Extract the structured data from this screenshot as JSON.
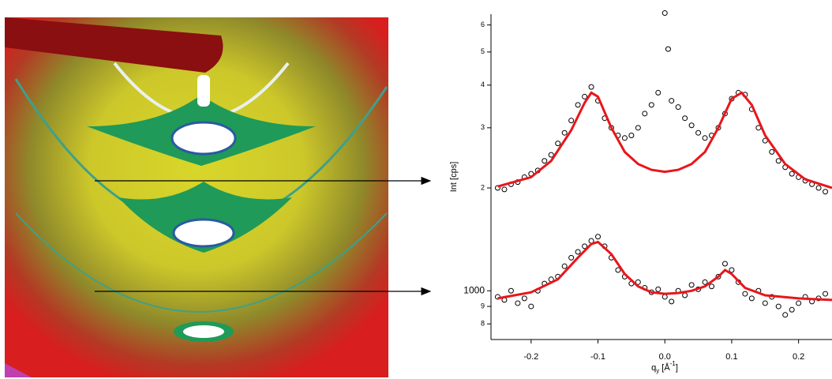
{
  "chart_data": {
    "type": "scatter",
    "log_y": true,
    "ylabel": "Int [cps]",
    "xlabel_parts": [
      "q",
      "y",
      " [Å",
      "-1",
      "]"
    ],
    "xlim": [
      -0.26,
      0.25
    ],
    "xticks": [
      -0.2,
      -0.1,
      {
        "value": 0,
        "label": "0.0"
      },
      0.1,
      0.2
    ],
    "ylim": [
      720,
      6450
    ],
    "yticks": [
      {
        "value": 800,
        "label": "8"
      },
      {
        "value": 900,
        "label": "9"
      },
      1000,
      {
        "value": 2000,
        "label": "2"
      },
      {
        "value": 3000,
        "label": "3"
      },
      {
        "value": 4000,
        "label": "4"
      },
      {
        "value": 5000,
        "label": "5"
      },
      {
        "value": 6000,
        "label": "6"
      }
    ],
    "series": [
      {
        "style": "markers",
        "color": "#000000",
        "x": [
          -0.25,
          -0.24,
          -0.23,
          -0.22,
          -0.21,
          -0.2,
          -0.19,
          -0.18,
          -0.17,
          -0.16,
          -0.15,
          -0.14,
          -0.13,
          -0.12,
          -0.11,
          -0.1,
          -0.09,
          -0.08,
          -0.07,
          -0.06,
          -0.05,
          -0.04,
          -0.03,
          -0.02,
          -0.01,
          0,
          0.005,
          0.01,
          0.02,
          0.03,
          0.04,
          0.05,
          0.06,
          0.07,
          0.08,
          0.09,
          0.1,
          0.11,
          0.12,
          0.13,
          0.14,
          0.15,
          0.16,
          0.17,
          0.18,
          0.19,
          0.2,
          0.21,
          0.22,
          0.23,
          0.24
        ],
        "values": [
          2000,
          1980,
          2050,
          2080,
          2150,
          2200,
          2250,
          2400,
          2500,
          2700,
          2900,
          3150,
          3500,
          3700,
          3950,
          3600,
          3200,
          3000,
          2850,
          2800,
          2850,
          3000,
          3300,
          3500,
          3800,
          6500,
          5100,
          3600,
          3450,
          3200,
          3050,
          2900,
          2800,
          2850,
          3000,
          3300,
          3650,
          3800,
          3750,
          3400,
          3000,
          2750,
          2550,
          2400,
          2300,
          2200,
          2150,
          2100,
          2050,
          2000,
          1950
        ]
      },
      {
        "style": "line",
        "color": "#e8161b",
        "x": [
          -0.25,
          -0.2,
          -0.17,
          -0.14,
          -0.12,
          -0.11,
          -0.1,
          -0.08,
          -0.06,
          -0.04,
          -0.02,
          0,
          0.02,
          0.04,
          0.06,
          0.08,
          0.1,
          0.115,
          0.13,
          0.15,
          0.18,
          0.21,
          0.25
        ],
        "values": [
          2020,
          2150,
          2400,
          2950,
          3550,
          3800,
          3700,
          3000,
          2550,
          2350,
          2260,
          2230,
          2260,
          2350,
          2550,
          3000,
          3650,
          3800,
          3500,
          2850,
          2350,
          2120,
          2000
        ]
      },
      {
        "style": "markers",
        "color": "#000000",
        "x": [
          -0.25,
          -0.24,
          -0.23,
          -0.22,
          -0.21,
          -0.2,
          -0.19,
          -0.18,
          -0.17,
          -0.16,
          -0.15,
          -0.14,
          -0.13,
          -0.12,
          -0.11,
          -0.1,
          -0.09,
          -0.08,
          -0.07,
          -0.06,
          -0.05,
          -0.04,
          -0.03,
          -0.02,
          -0.01,
          0,
          0.01,
          0.02,
          0.03,
          0.04,
          0.05,
          0.06,
          0.07,
          0.08,
          0.09,
          0.1,
          0.11,
          0.12,
          0.13,
          0.14,
          0.15,
          0.16,
          0.17,
          0.18,
          0.19,
          0.2,
          0.21,
          0.22,
          0.23,
          0.24
        ],
        "values": [
          960,
          940,
          1000,
          920,
          950,
          900,
          1000,
          1050,
          1080,
          1100,
          1180,
          1250,
          1300,
          1350,
          1400,
          1440,
          1350,
          1250,
          1150,
          1100,
          1050,
          1060,
          1020,
          990,
          1010,
          960,
          930,
          1000,
          970,
          1040,
          1010,
          1060,
          1030,
          1100,
          1200,
          1150,
          1060,
          980,
          950,
          1000,
          920,
          960,
          900,
          850,
          880,
          920,
          960,
          930,
          950,
          980
        ]
      },
      {
        "style": "line",
        "color": "#e8161b",
        "x": [
          -0.25,
          -0.2,
          -0.16,
          -0.13,
          -0.11,
          -0.1,
          -0.08,
          -0.06,
          -0.04,
          -0.02,
          0,
          0.02,
          0.04,
          0.06,
          0.08,
          0.09,
          0.1,
          0.12,
          0.15,
          0.2,
          0.25
        ],
        "values": [
          950,
          990,
          1080,
          1250,
          1370,
          1390,
          1280,
          1120,
          1030,
          990,
          980,
          985,
          1000,
          1030,
          1100,
          1150,
          1120,
          1020,
          970,
          950,
          940
        ]
      }
    ]
  }
}
